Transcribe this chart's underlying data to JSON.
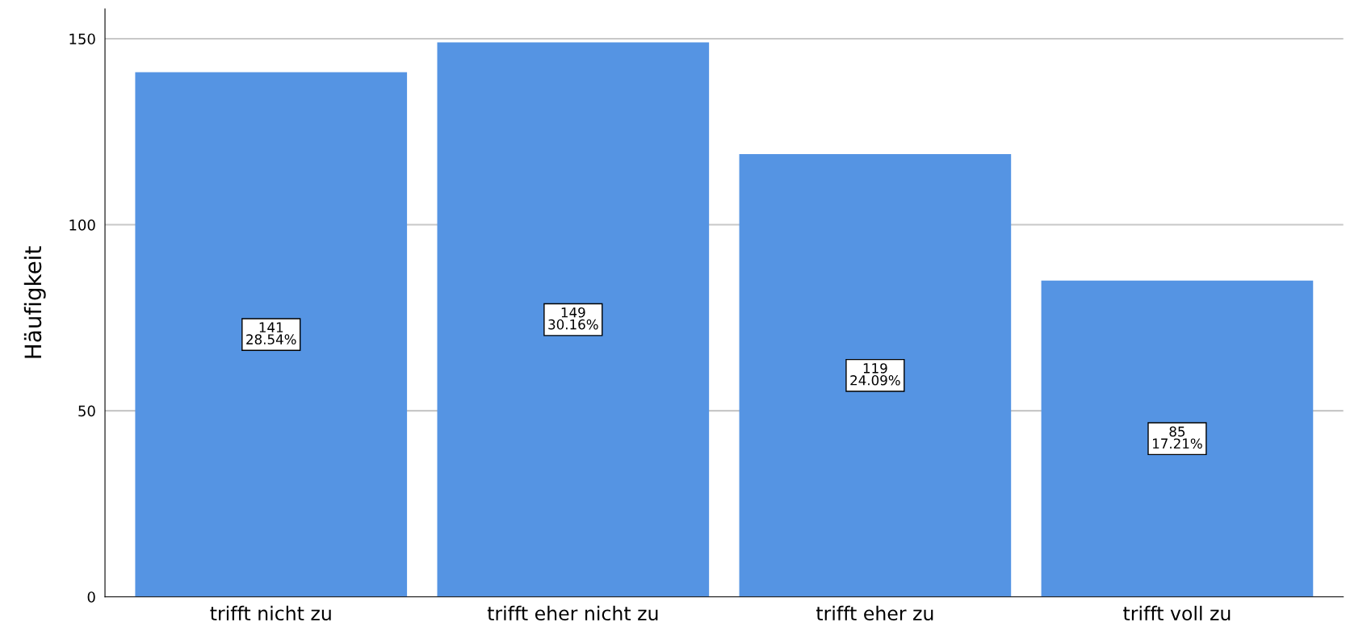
{
  "chart_data": {
    "type": "bar",
    "ylabel": "Häufigkeit",
    "categories": [
      "trifft nicht zu",
      "trifft eher nicht zu",
      "trifft eher zu",
      "trifft voll zu"
    ],
    "values": [
      141,
      149,
      119,
      85
    ],
    "value_labels": [
      "141\n28.54%",
      "149\n30.16%",
      "119\n24.09%",
      "85\n17.21%"
    ],
    "color": "#5594e3",
    "ylim": [
      0,
      158
    ],
    "yticks": [
      0,
      50,
      100,
      150
    ],
    "grid": "y"
  }
}
